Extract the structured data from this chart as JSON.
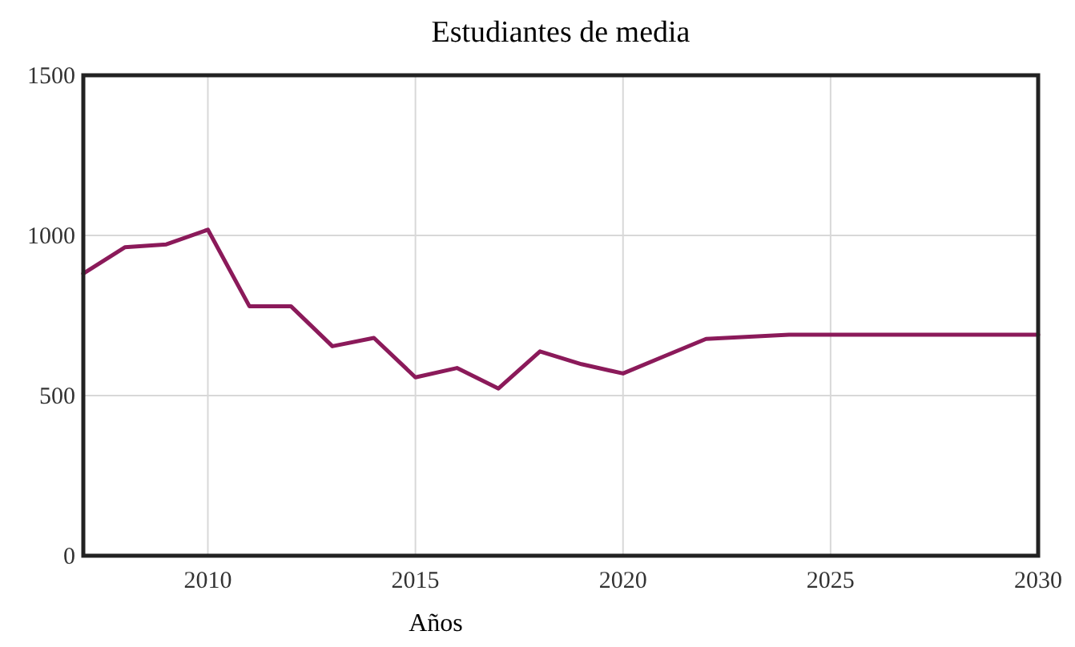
{
  "chart_data": {
    "type": "line",
    "title": "Estudiantes de media",
    "xlabel": "Años",
    "x": [
      2007,
      2008,
      2009,
      2010,
      2011,
      2012,
      2013,
      2014,
      2015,
      2016,
      2017,
      2018,
      2019,
      2020,
      2021,
      2022,
      2024,
      2030
    ],
    "series": [
      {
        "color": "#8b1a5a",
        "values": [
          881,
          963,
          972,
          1018,
          779,
          779,
          654,
          680,
          557,
          586,
          522,
          638,
          598,
          569,
          623,
          677,
          690,
          690
        ]
      }
    ],
    "xlim": [
      2007,
      2030
    ],
    "xticks": [
      2010,
      2015,
      2020,
      2025,
      2030
    ],
    "ylim": [
      0,
      1500
    ],
    "yticks": [
      0,
      500,
      1000,
      1500
    ],
    "grid": true,
    "marker": "none",
    "line_style": "solid"
  }
}
